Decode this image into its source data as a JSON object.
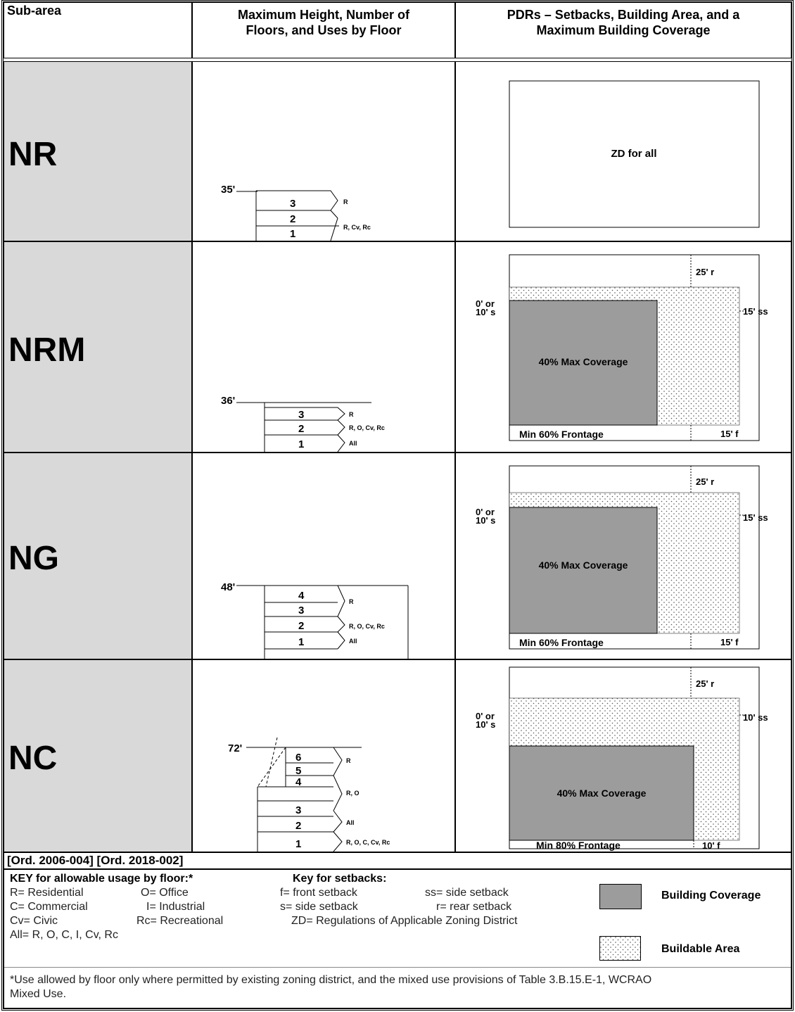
{
  "header": {
    "col1": "Sub-area",
    "col2_line1": "Maximum Height, Number of",
    "col2_line2": "Floors, and Uses by Floor",
    "col3_line1": "PDRs – Setbacks, Building Area, and a",
    "col3_line2": "Maximum Building Coverage"
  },
  "rows": [
    {
      "name": "NR",
      "height": "35'",
      "floors": [
        "3",
        "2",
        "1"
      ],
      "uses": [
        "R",
        "R, Cv, Rc"
      ],
      "pdr": "ZD for all"
    },
    {
      "name": "NRM",
      "height": "36'",
      "floors": [
        "3",
        "2",
        "1"
      ],
      "uses": [
        "R",
        "R, O, Cv, Rc",
        "All"
      ],
      "rear": "25' r",
      "front_side": "0' or",
      "front_side2": "10' s",
      "side": "15' ss",
      "coverage": "40% Max Coverage",
      "frontage": "Min 60% Frontage",
      "front": "15' f"
    },
    {
      "name": "NG",
      "height": "48'",
      "floors": [
        "4",
        "3",
        "2",
        "1"
      ],
      "uses": [
        "R",
        "R, O, Cv, Rc",
        "All"
      ],
      "rear": "25' r",
      "front_side": "0' or",
      "front_side2": "10' s",
      "side": "15' ss",
      "coverage": "40% Max Coverage",
      "frontage": "Min 60% Frontage",
      "front": "15' f"
    },
    {
      "name": "NC",
      "height": "72'",
      "floors": [
        "6",
        "5",
        "4",
        "3",
        "2",
        "1"
      ],
      "uses": [
        "R",
        "R, O",
        "All",
        "R, O, C, Cv, Rc"
      ],
      "rear": "25' r",
      "front_side": "0' or",
      "front_side2": "10' s",
      "side": "10' ss",
      "coverage": "40% Max Coverage",
      "frontage": "Min 80% Frontage",
      "front": "10' f"
    }
  ],
  "ordinance": "[Ord. 2006-004] [Ord. 2018-002]",
  "key": {
    "usage_title": "KEY for allowable usage by floor:*",
    "usage": [
      [
        "R= Residential",
        "O= Office"
      ],
      [
        "C= Commercial",
        "I= Industrial"
      ],
      [
        "Cv= Civic",
        "Rc= Recreational"
      ]
    ],
    "all": "All= R, O, C, I, Cv, Rc",
    "setback_title": "Key for setbacks:",
    "setbacks": [
      [
        "f= front setback",
        "ss= side setback"
      ],
      [
        "s= side setback",
        "r= rear setback"
      ]
    ],
    "zd": "ZD= Regulations of Applicable Zoning District",
    "legend_building": "Building Coverage",
    "legend_buildable": "Buildable Area",
    "footnote_line1": "*Use allowed by floor only where permitted by existing zoning district, and the mixed use provisions of Table 3.B.15.E-1, WCRAO",
    "footnote_line2": "Mixed Use."
  }
}
